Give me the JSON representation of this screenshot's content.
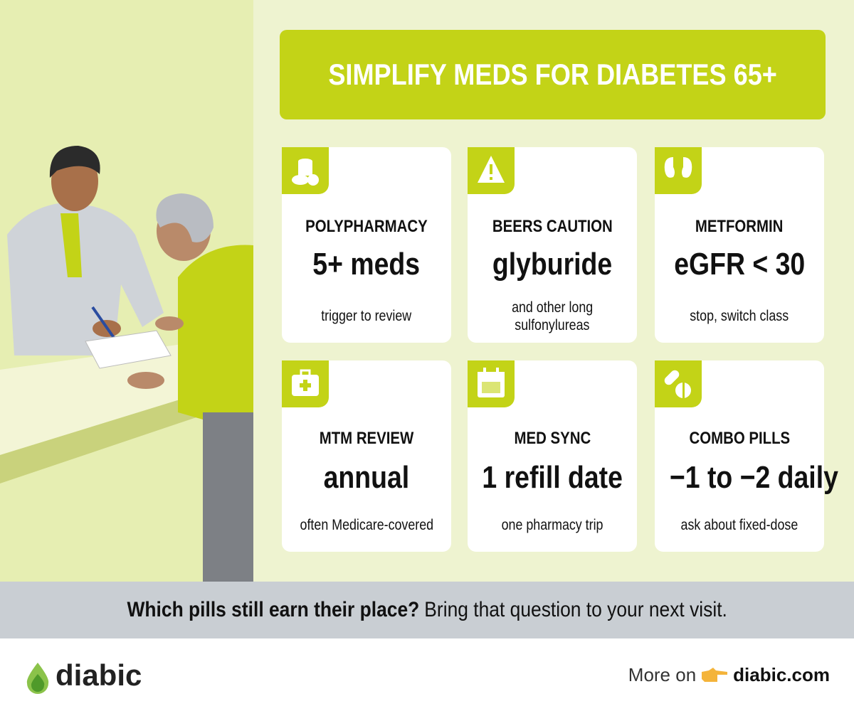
{
  "header": {
    "title": "SIMPLIFY MEDS FOR DIABETES 65+"
  },
  "cards": [
    {
      "label": "POLYPHARMACY",
      "value": "5+ meds",
      "note_lines": [
        "trigger to review"
      ]
    },
    {
      "label": "BEERS CAUTION",
      "value": "glyburide",
      "note_lines": [
        "and other long",
        "sulfonylureas"
      ]
    },
    {
      "label": "METFORMIN",
      "value": "eGFR < 30",
      "note_lines": [
        "stop, switch class"
      ]
    },
    {
      "label": "MTM REVIEW",
      "value": "annual",
      "note_lines": [
        "often Medicare-covered"
      ]
    },
    {
      "label": "MED SYNC",
      "value": "1 refill date",
      "note_lines": [
        "one pharmacy trip"
      ]
    },
    {
      "label": "COMBO PILLS",
      "value": "−1 to −2 daily",
      "note_lines": [
        "ask about fixed-dose"
      ]
    }
  ],
  "banner": {
    "bold": "Which pills still earn their place?",
    "rest": "Bring that question to your next visit."
  },
  "footer": {
    "brand": "diabic",
    "more_on": "More on",
    "link": "diabic.com"
  }
}
